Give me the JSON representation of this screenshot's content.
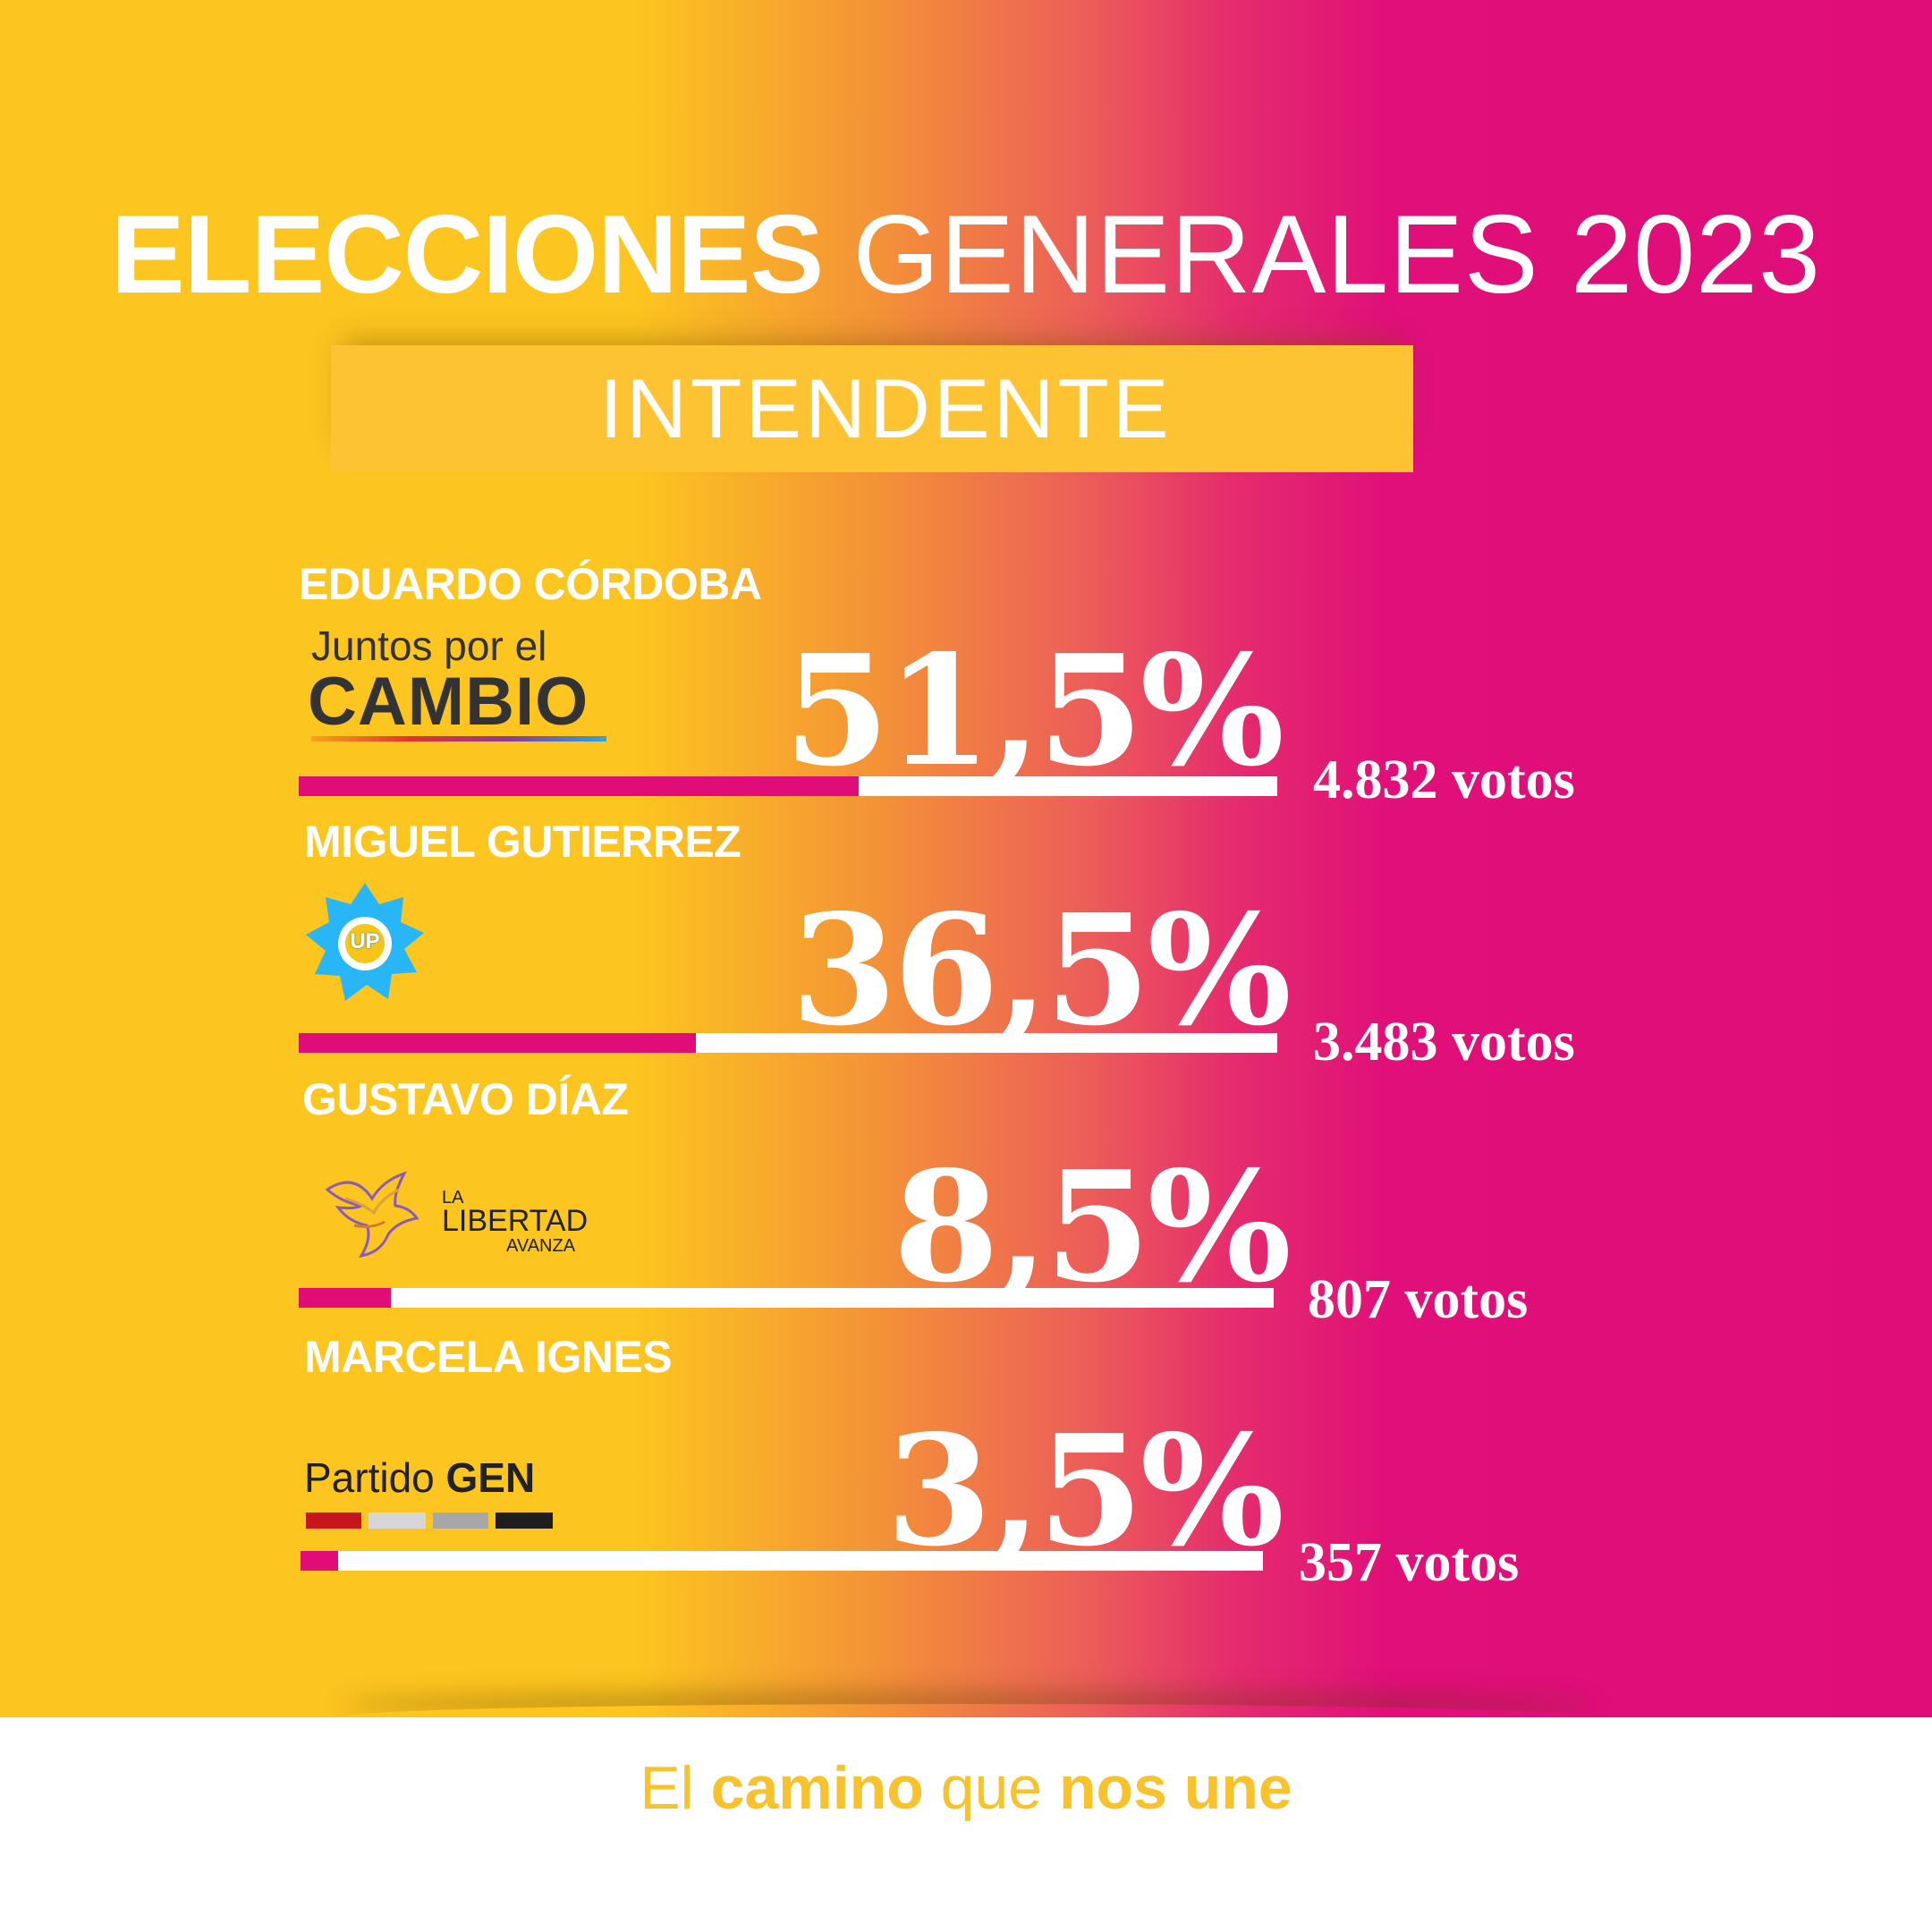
{
  "header": {
    "title_bold": "ELECCIONES",
    "title_light": "GENERALES 2023",
    "section": "INTENDENTE"
  },
  "colors": {
    "bar_fill": "#e00d79",
    "bar_track": "#ffffff",
    "bg_left": "#fcc51f",
    "bg_right": "#e00d79"
  },
  "chart_data": {
    "type": "bar",
    "orientation": "horizontal",
    "title": "ELECCIONES GENERALES 2023",
    "subtitle": "INTENDENTE",
    "categories": [
      "EDUARDO CÓRDOBA",
      "MIGUEL GUTIERREZ",
      "GUSTAVO DÍAZ",
      "MARCELA IGNES"
    ],
    "values": [
      51.5,
      36.5,
      8.5,
      3.5
    ],
    "value_labels": [
      "51,5%",
      "36,5%",
      "8,5%",
      "3,5%"
    ],
    "votes": [
      4832,
      3483,
      807,
      357
    ],
    "vote_labels": [
      "4.832 votos",
      "3.483 votos",
      "807 votos",
      "357 votos"
    ],
    "parties": [
      "Juntos por el CAMBIO",
      "UP",
      "LA LIBERTAD AVANZA",
      "Partido GEN"
    ],
    "xlim": [
      0,
      90
    ]
  },
  "logos": {
    "jxc_line1": "Juntos por el",
    "jxc_line2": "CAMBIO",
    "up": "UP",
    "lla_line1": "LA",
    "lla_line2": "LIBERTAD",
    "lla_line3": "AVANZA",
    "gen_line1": "Partido",
    "gen_line2": "GEN"
  },
  "footer": {
    "slogan_1": "El ",
    "slogan_2": "camino",
    "slogan_3": " que ",
    "slogan_4": "nos une"
  }
}
